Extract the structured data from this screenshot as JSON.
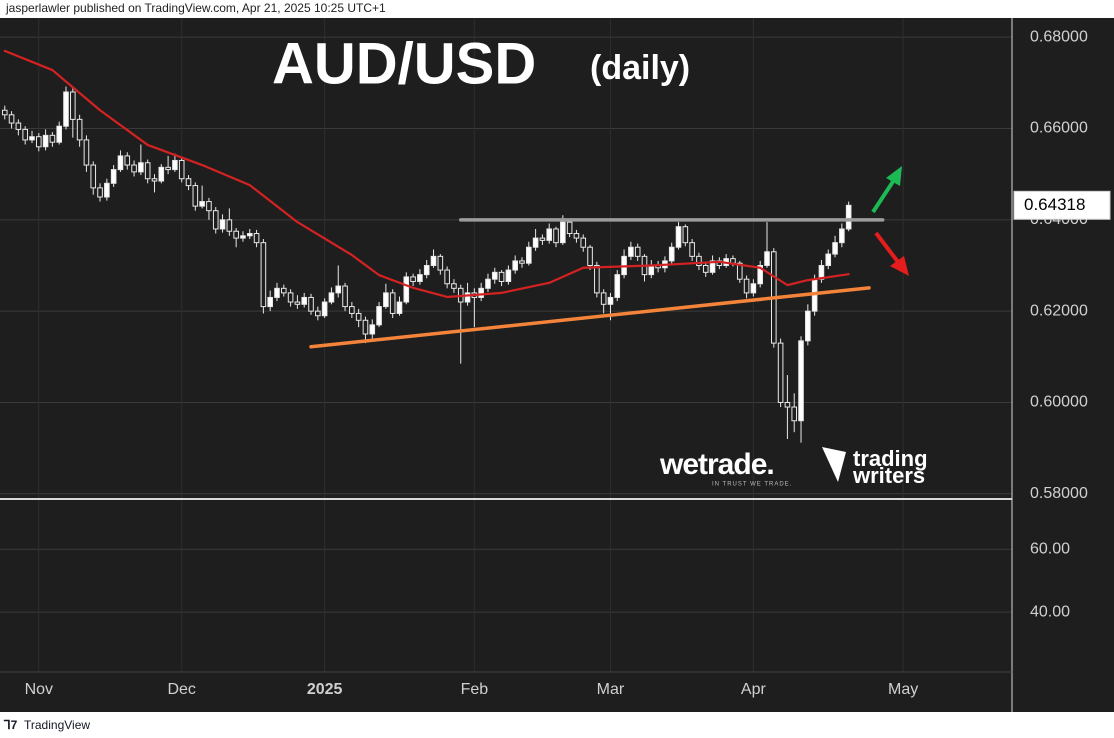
{
  "header": {
    "attribution": "jasperlawler published on TradingView.com, Apr 21, 2025 10:25 UTC+1"
  },
  "footer": {
    "brand": "TradingView"
  },
  "chart_data": {
    "type": "candlestick",
    "title": "AUD/USD",
    "subtitle": "(daily)",
    "open": [
      0.664,
      0.663,
      0.6612,
      0.6598,
      0.6575,
      0.6582,
      0.656,
      0.6585,
      0.657,
      0.6605,
      0.668,
      0.662,
      0.6575,
      0.652,
      0.647,
      0.645,
      0.648,
      0.651,
      0.654,
      0.652,
      0.6505,
      0.6525,
      0.649,
      0.6485,
      0.6515,
      0.651,
      0.653,
      0.649,
      0.6475,
      0.643,
      0.644,
      0.642,
      0.638,
      0.64,
      0.6375,
      0.636,
      0.6365,
      0.637,
      0.635,
      0.621,
      0.623,
      0.625,
      0.624,
      0.622,
      0.6215,
      0.623,
      0.62,
      0.619,
      0.622,
      0.624,
      0.6255,
      0.621,
      0.6195,
      0.618,
      0.615,
      0.617,
      0.621,
      0.624,
      0.6195,
      0.622,
      0.6275,
      0.6265,
      0.628,
      0.63,
      0.632,
      0.629,
      0.626,
      0.625,
      0.622,
      0.624,
      0.623,
      0.625,
      0.627,
      0.6285,
      0.6265,
      0.629,
      0.631,
      0.6305,
      0.634,
      0.636,
      0.6355,
      0.638,
      0.635,
      0.6395,
      0.637,
      0.636,
      0.634,
      0.63,
      0.624,
      0.6215,
      0.623,
      0.628,
      0.632,
      0.634,
      0.632,
      0.628,
      0.63,
      0.6295,
      0.631,
      0.634,
      0.6385,
      0.635,
      0.632,
      0.63,
      0.6285,
      0.631,
      0.63,
      0.6315,
      0.6305,
      0.627,
      0.624,
      0.626,
      0.63,
      0.633,
      0.613,
      0.6,
      0.599,
      0.596,
      0.6135,
      0.62,
      0.627,
      0.63,
      0.6325,
      0.635,
      0.638
    ],
    "high": [
      0.665,
      0.6638,
      0.662,
      0.6605,
      0.6595,
      0.659,
      0.6598,
      0.6592,
      0.6615,
      0.6692,
      0.6688,
      0.663,
      0.6585,
      0.6528,
      0.648,
      0.649,
      0.652,
      0.6552,
      0.6548,
      0.653,
      0.6565,
      0.6532,
      0.65,
      0.6522,
      0.654,
      0.6545,
      0.6535,
      0.6498,
      0.6482,
      0.6475,
      0.6448,
      0.6428,
      0.6412,
      0.6425,
      0.6382,
      0.6375,
      0.638,
      0.6378,
      0.6358,
      0.6245,
      0.6262,
      0.6258,
      0.6248,
      0.6235,
      0.624,
      0.6238,
      0.621,
      0.6228,
      0.6252,
      0.63,
      0.6262,
      0.622,
      0.6205,
      0.6188,
      0.6182,
      0.622,
      0.626,
      0.6248,
      0.6232,
      0.6285,
      0.6282,
      0.6292,
      0.6312,
      0.6335,
      0.6325,
      0.6298,
      0.627,
      0.6258,
      0.6262,
      0.625,
      0.6262,
      0.6282,
      0.6295,
      0.629,
      0.63,
      0.6322,
      0.6318,
      0.6352,
      0.638,
      0.6368,
      0.6392,
      0.6385,
      0.641,
      0.64,
      0.6378,
      0.6368,
      0.6345,
      0.6308,
      0.6248,
      0.624,
      0.629,
      0.6335,
      0.6352,
      0.6348,
      0.6325,
      0.6312,
      0.631,
      0.632,
      0.635,
      0.6395,
      0.639,
      0.6358,
      0.6328,
      0.6308,
      0.6322,
      0.6318,
      0.6325,
      0.6322,
      0.631,
      0.6278,
      0.627,
      0.631,
      0.6395,
      0.6338,
      0.614,
      0.606,
      0.602,
      0.6145,
      0.6215,
      0.628,
      0.6312,
      0.6335,
      0.6365,
      0.6392,
      0.644
    ],
    "low": [
      0.662,
      0.66,
      0.6585,
      0.6565,
      0.6568,
      0.655,
      0.6552,
      0.656,
      0.6565,
      0.6598,
      0.658,
      0.656,
      0.6505,
      0.6455,
      0.644,
      0.6442,
      0.6472,
      0.6505,
      0.651,
      0.6495,
      0.6498,
      0.648,
      0.646,
      0.648,
      0.65,
      0.6505,
      0.6482,
      0.6465,
      0.642,
      0.6425,
      0.64,
      0.637,
      0.6372,
      0.6365,
      0.634,
      0.6352,
      0.6358,
      0.634,
      0.6195,
      0.62,
      0.6222,
      0.6232,
      0.621,
      0.6205,
      0.6208,
      0.6192,
      0.618,
      0.6185,
      0.6215,
      0.623,
      0.62,
      0.6185,
      0.6165,
      0.613,
      0.614,
      0.6165,
      0.6205,
      0.6185,
      0.619,
      0.6215,
      0.6255,
      0.6258,
      0.6272,
      0.6295,
      0.628,
      0.625,
      0.624,
      0.6085,
      0.6212,
      0.6165,
      0.6222,
      0.6242,
      0.626,
      0.6255,
      0.6258,
      0.6282,
      0.6295,
      0.63,
      0.6332,
      0.6345,
      0.6348,
      0.634,
      0.6345,
      0.6362,
      0.635,
      0.633,
      0.629,
      0.623,
      0.6195,
      0.618,
      0.6222,
      0.6272,
      0.6312,
      0.631,
      0.6265,
      0.6272,
      0.6285,
      0.6285,
      0.6302,
      0.6335,
      0.6342,
      0.631,
      0.629,
      0.6275,
      0.628,
      0.6292,
      0.6295,
      0.6298,
      0.6262,
      0.6228,
      0.6232,
      0.6252,
      0.6295,
      0.612,
      0.599,
      0.592,
      0.5935,
      0.5912,
      0.6125,
      0.619,
      0.6262,
      0.6292,
      0.6318,
      0.634,
      0.6375
    ],
    "close": [
      0.663,
      0.6612,
      0.6598,
      0.6575,
      0.6582,
      0.656,
      0.6585,
      0.657,
      0.6605,
      0.668,
      0.662,
      0.6575,
      0.652,
      0.647,
      0.645,
      0.648,
      0.651,
      0.654,
      0.652,
      0.6505,
      0.6525,
      0.649,
      0.6485,
      0.6515,
      0.651,
      0.653,
      0.649,
      0.6475,
      0.643,
      0.644,
      0.642,
      0.638,
      0.64,
      0.6375,
      0.636,
      0.6365,
      0.637,
      0.635,
      0.621,
      0.623,
      0.625,
      0.624,
      0.622,
      0.6215,
      0.623,
      0.62,
      0.619,
      0.622,
      0.624,
      0.6255,
      0.621,
      0.6195,
      0.618,
      0.615,
      0.617,
      0.621,
      0.624,
      0.6195,
      0.622,
      0.6275,
      0.6265,
      0.628,
      0.63,
      0.632,
      0.629,
      0.626,
      0.625,
      0.622,
      0.624,
      0.623,
      0.625,
      0.627,
      0.6285,
      0.6265,
      0.629,
      0.631,
      0.6305,
      0.634,
      0.636,
      0.6355,
      0.638,
      0.635,
      0.6395,
      0.637,
      0.636,
      0.634,
      0.63,
      0.624,
      0.6215,
      0.623,
      0.628,
      0.632,
      0.634,
      0.632,
      0.628,
      0.63,
      0.6295,
      0.631,
      0.634,
      0.6385,
      0.635,
      0.632,
      0.63,
      0.6285,
      0.631,
      0.63,
      0.6315,
      0.6305,
      0.627,
      0.624,
      0.626,
      0.63,
      0.633,
      0.613,
      0.6,
      0.599,
      0.596,
      0.6135,
      0.62,
      0.627,
      0.63,
      0.6325,
      0.635,
      0.638,
      0.64318
    ],
    "up_color": "#ffffff",
    "down_color": "#1e1e1e",
    "xlim": [
      -0.7,
      148
    ],
    "xticks": [
      {
        "value": 5,
        "label": "Nov"
      },
      {
        "value": 26,
        "label": "Dec"
      },
      {
        "value": 47,
        "label": "2025"
      },
      {
        "value": 69,
        "label": "Feb"
      },
      {
        "value": 89,
        "label": "Mar"
      },
      {
        "value": 110,
        "label": "Apr"
      },
      {
        "value": 132,
        "label": "May"
      }
    ],
    "ylim": [
      0.5793,
      0.6842
    ],
    "yticks": [
      {
        "value": 0.68,
        "label": "0.68000"
      },
      {
        "value": 0.66,
        "label": "0.66000"
      },
      {
        "value": 0.64,
        "label": "0.64000"
      },
      {
        "value": 0.62,
        "label": "0.62000"
      },
      {
        "value": 0.6,
        "label": "0.60000"
      },
      {
        "value": 0.58,
        "label": "0.58000"
      }
    ],
    "grid": true,
    "moving_average": {
      "color": "#d42222",
      "x": [
        0,
        7,
        14,
        21,
        29,
        36,
        43,
        51,
        55,
        60,
        65,
        73,
        80,
        85,
        95,
        105,
        111,
        115,
        118,
        124
      ],
      "values": [
        0.677,
        0.6728,
        0.664,
        0.6564,
        0.652,
        0.6476,
        0.6395,
        0.6323,
        0.6279,
        0.6251,
        0.6231,
        0.624,
        0.6262,
        0.6295,
        0.63,
        0.6308,
        0.6295,
        0.6257,
        0.6268,
        0.6281
      ]
    },
    "lines": [
      {
        "color": "#9c9c9c",
        "x": [
          67,
          129
        ],
        "values": [
          0.64,
          0.64
        ]
      },
      {
        "color": "#f5843b",
        "x": [
          45,
          127
        ],
        "values": [
          0.6122,
          0.6251
        ]
      }
    ],
    "lower_panel": {
      "ylim": [
        21,
        75
      ],
      "yticks": [
        {
          "value": 60,
          "label": "60.00"
        },
        {
          "value": 40,
          "label": "40.00"
        }
      ]
    }
  },
  "watermarks": {
    "wetrade": "wetrade.",
    "tagline": "IN TRUST WE TRADE.",
    "trading_writers": [
      "trading",
      "writers"
    ]
  }
}
